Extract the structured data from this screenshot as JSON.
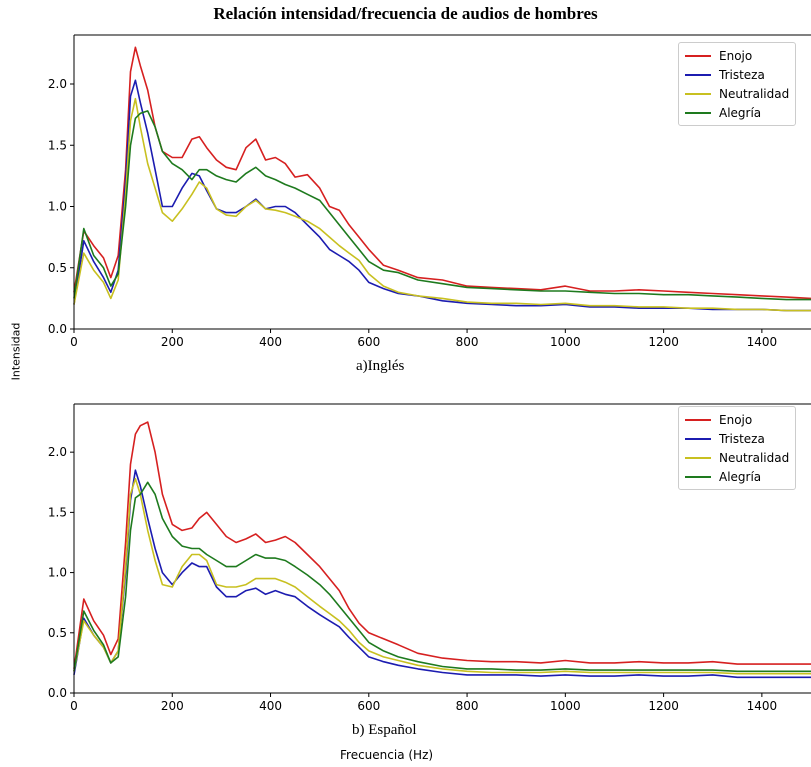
{
  "title": "Relación intensidad/frecuencia de audios de hombres",
  "ylabel": "Intensidad",
  "xlabel": "Frecuencia (Hz)",
  "colors": {
    "Enojo": "#d62020",
    "Tristeza": "#1c1cb0",
    "Neutralidad": "#c8c020",
    "Alegría": "#1e7a1e"
  },
  "chart_data": [
    {
      "type": "line",
      "caption": "a)Inglés",
      "xlim": [
        0,
        1500
      ],
      "ylim": [
        0,
        2.4
      ],
      "xticks": [
        "0",
        "200",
        "400",
        "600",
        "800",
        "1000",
        "1200",
        "1400"
      ],
      "yticks": [
        "0.0",
        "0.5",
        "1.0",
        "1.5",
        "2.0"
      ],
      "legend": "top-right",
      "x": [
        0,
        20,
        40,
        60,
        75,
        90,
        105,
        115,
        125,
        135,
        150,
        165,
        180,
        200,
        220,
        240,
        255,
        270,
        290,
        310,
        330,
        350,
        370,
        390,
        410,
        430,
        450,
        475,
        500,
        520,
        540,
        560,
        580,
        600,
        630,
        660,
        700,
        750,
        800,
        850,
        900,
        950,
        1000,
        1050,
        1100,
        1150,
        1200,
        1250,
        1300,
        1350,
        1400,
        1450,
        1500
      ],
      "series": [
        {
          "name": "Enojo",
          "values": [
            0.3,
            0.8,
            0.68,
            0.58,
            0.42,
            0.6,
            1.3,
            2.1,
            2.3,
            2.15,
            1.95,
            1.65,
            1.45,
            1.4,
            1.4,
            1.55,
            1.57,
            1.48,
            1.38,
            1.32,
            1.3,
            1.48,
            1.55,
            1.38,
            1.4,
            1.35,
            1.24,
            1.26,
            1.15,
            1.0,
            0.97,
            0.85,
            0.75,
            0.65,
            0.52,
            0.48,
            0.42,
            0.4,
            0.35,
            0.34,
            0.33,
            0.32,
            0.35,
            0.31,
            0.31,
            0.32,
            0.31,
            0.3,
            0.29,
            0.28,
            0.27,
            0.26,
            0.25
          ]
        },
        {
          "name": "Tristeza",
          "values": [
            0.2,
            0.72,
            0.55,
            0.42,
            0.3,
            0.48,
            1.2,
            1.9,
            2.03,
            1.85,
            1.6,
            1.3,
            1.0,
            1.0,
            1.15,
            1.27,
            1.25,
            1.13,
            0.98,
            0.95,
            0.95,
            1.0,
            1.06,
            0.98,
            1.0,
            1.0,
            0.95,
            0.85,
            0.75,
            0.65,
            0.6,
            0.55,
            0.48,
            0.38,
            0.33,
            0.29,
            0.27,
            0.23,
            0.21,
            0.2,
            0.19,
            0.19,
            0.2,
            0.18,
            0.18,
            0.17,
            0.17,
            0.17,
            0.16,
            0.16,
            0.16,
            0.15,
            0.15
          ]
        },
        {
          "name": "Neutralidad",
          "values": [
            0.2,
            0.62,
            0.48,
            0.38,
            0.25,
            0.4,
            1.1,
            1.7,
            1.88,
            1.65,
            1.35,
            1.15,
            0.95,
            0.88,
            0.98,
            1.1,
            1.2,
            1.15,
            0.98,
            0.93,
            0.92,
            1.0,
            1.05,
            0.98,
            0.97,
            0.95,
            0.92,
            0.88,
            0.82,
            0.75,
            0.68,
            0.62,
            0.56,
            0.45,
            0.35,
            0.3,
            0.27,
            0.25,
            0.22,
            0.21,
            0.21,
            0.2,
            0.21,
            0.19,
            0.19,
            0.18,
            0.18,
            0.17,
            0.17,
            0.16,
            0.16,
            0.15,
            0.15
          ]
        },
        {
          "name": "Alegría",
          "values": [
            0.25,
            0.82,
            0.6,
            0.5,
            0.35,
            0.45,
            1.0,
            1.5,
            1.72,
            1.76,
            1.78,
            1.65,
            1.45,
            1.35,
            1.3,
            1.22,
            1.3,
            1.3,
            1.25,
            1.22,
            1.2,
            1.27,
            1.32,
            1.25,
            1.22,
            1.18,
            1.15,
            1.1,
            1.05,
            0.95,
            0.85,
            0.75,
            0.65,
            0.55,
            0.48,
            0.46,
            0.4,
            0.37,
            0.34,
            0.33,
            0.32,
            0.31,
            0.31,
            0.3,
            0.29,
            0.29,
            0.28,
            0.28,
            0.27,
            0.26,
            0.25,
            0.24,
            0.24
          ]
        }
      ]
    },
    {
      "type": "line",
      "caption": "b) Español",
      "xlim": [
        0,
        1500
      ],
      "ylim": [
        0,
        2.4
      ],
      "xticks": [
        "0",
        "200",
        "400",
        "600",
        "800",
        "1000",
        "1200",
        "1400"
      ],
      "yticks": [
        "0.0",
        "0.5",
        "1.0",
        "1.5",
        "2.0"
      ],
      "legend": "top-right",
      "x": [
        0,
        20,
        40,
        60,
        75,
        90,
        105,
        115,
        125,
        135,
        150,
        165,
        180,
        200,
        220,
        240,
        255,
        270,
        290,
        310,
        330,
        350,
        370,
        390,
        410,
        430,
        450,
        475,
        500,
        520,
        540,
        560,
        580,
        600,
        630,
        660,
        700,
        750,
        800,
        850,
        900,
        950,
        1000,
        1050,
        1100,
        1150,
        1200,
        1250,
        1300,
        1350,
        1400,
        1450,
        1500
      ],
      "series": [
        {
          "name": "Enojo",
          "values": [
            0.2,
            0.78,
            0.6,
            0.48,
            0.32,
            0.45,
            1.25,
            1.9,
            2.15,
            2.22,
            2.25,
            2.0,
            1.65,
            1.4,
            1.35,
            1.37,
            1.45,
            1.5,
            1.4,
            1.3,
            1.25,
            1.28,
            1.32,
            1.25,
            1.27,
            1.3,
            1.25,
            1.15,
            1.05,
            0.95,
            0.85,
            0.7,
            0.58,
            0.5,
            0.45,
            0.4,
            0.33,
            0.29,
            0.27,
            0.26,
            0.26,
            0.25,
            0.27,
            0.25,
            0.25,
            0.26,
            0.25,
            0.25,
            0.26,
            0.24,
            0.24,
            0.24,
            0.24
          ]
        },
        {
          "name": "Tristeza",
          "values": [
            0.15,
            0.62,
            0.48,
            0.38,
            0.25,
            0.35,
            1.0,
            1.6,
            1.85,
            1.72,
            1.45,
            1.2,
            1.0,
            0.9,
            1.0,
            1.08,
            1.05,
            1.05,
            0.88,
            0.8,
            0.8,
            0.85,
            0.87,
            0.82,
            0.85,
            0.82,
            0.8,
            0.72,
            0.65,
            0.6,
            0.55,
            0.46,
            0.38,
            0.3,
            0.26,
            0.23,
            0.2,
            0.17,
            0.15,
            0.15,
            0.15,
            0.14,
            0.15,
            0.14,
            0.14,
            0.15,
            0.14,
            0.14,
            0.15,
            0.13,
            0.13,
            0.13,
            0.13
          ]
        },
        {
          "name": "Neutralidad",
          "values": [
            0.18,
            0.6,
            0.48,
            0.38,
            0.25,
            0.35,
            1.05,
            1.65,
            1.78,
            1.65,
            1.35,
            1.1,
            0.9,
            0.88,
            1.05,
            1.15,
            1.15,
            1.1,
            0.9,
            0.88,
            0.88,
            0.9,
            0.95,
            0.95,
            0.95,
            0.92,
            0.88,
            0.8,
            0.72,
            0.66,
            0.6,
            0.52,
            0.42,
            0.35,
            0.3,
            0.27,
            0.23,
            0.2,
            0.18,
            0.17,
            0.17,
            0.17,
            0.18,
            0.17,
            0.17,
            0.17,
            0.17,
            0.17,
            0.17,
            0.16,
            0.16,
            0.16,
            0.16
          ]
        },
        {
          "name": "Alegría",
          "values": [
            0.18,
            0.68,
            0.52,
            0.4,
            0.25,
            0.3,
            0.8,
            1.35,
            1.62,
            1.65,
            1.75,
            1.65,
            1.45,
            1.3,
            1.22,
            1.2,
            1.2,
            1.15,
            1.1,
            1.05,
            1.05,
            1.1,
            1.15,
            1.12,
            1.12,
            1.1,
            1.05,
            0.98,
            0.9,
            0.82,
            0.72,
            0.62,
            0.52,
            0.42,
            0.35,
            0.3,
            0.26,
            0.22,
            0.2,
            0.2,
            0.19,
            0.19,
            0.2,
            0.19,
            0.19,
            0.19,
            0.19,
            0.19,
            0.19,
            0.18,
            0.18,
            0.18,
            0.18
          ]
        }
      ]
    }
  ]
}
